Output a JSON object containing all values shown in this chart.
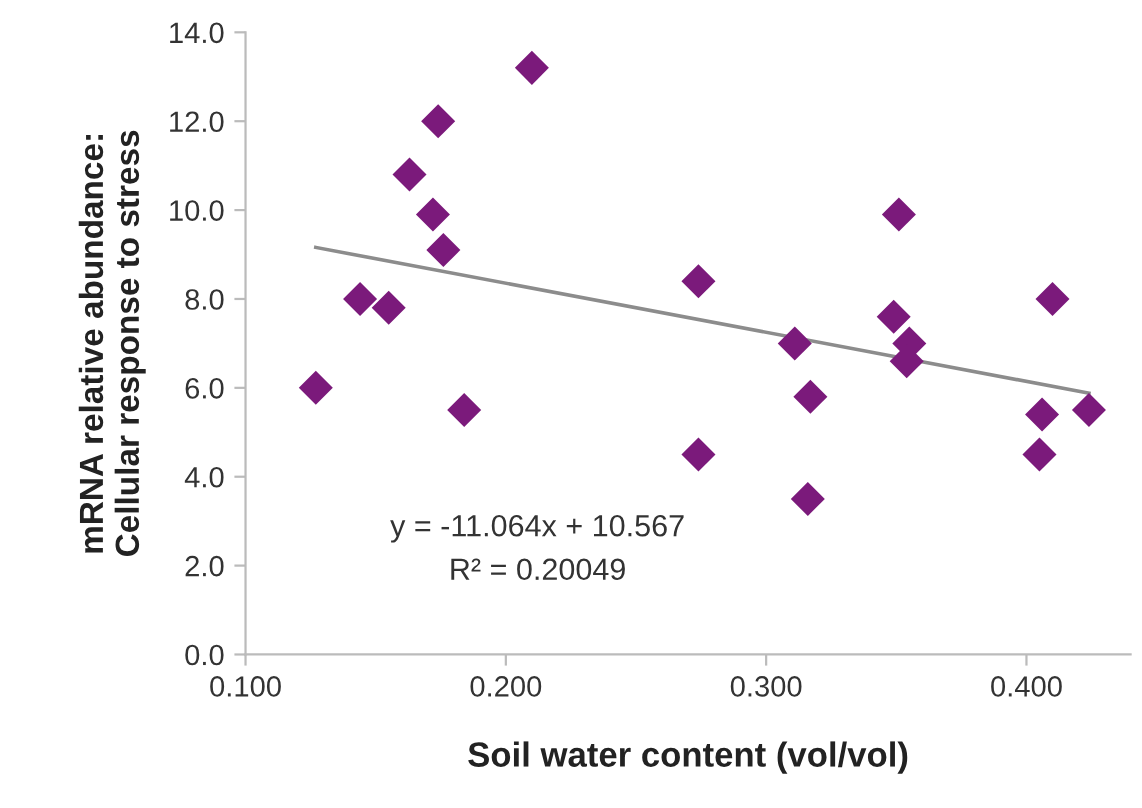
{
  "chart_data": {
    "type": "scatter",
    "xlabel": "Soil water content (vol/vol)",
    "ylabel": "mRNA relative abundance:\nCellular response to stress",
    "annotations": [
      "y = -11.064x + 10.567",
      "R² = 0.20049"
    ],
    "grid": false,
    "legend": false,
    "xlim": [
      0.1,
      0.44
    ],
    "ylim": [
      0,
      14
    ],
    "xticks": [
      {
        "value": 0.1,
        "label": "0.100"
      },
      {
        "value": 0.2,
        "label": "0.200"
      },
      {
        "value": 0.3,
        "label": "0.300"
      },
      {
        "value": 0.4,
        "label": "0.400"
      }
    ],
    "yticks": [
      {
        "value": 0,
        "label": "0.0"
      },
      {
        "value": 2,
        "label": "2.0"
      },
      {
        "value": 4,
        "label": "4.0"
      },
      {
        "value": 6,
        "label": "6.0"
      },
      {
        "value": 8,
        "label": "8.0"
      },
      {
        "value": 10,
        "label": "10.0"
      },
      {
        "value": 12,
        "label": "12.0"
      },
      {
        "value": 14,
        "label": "14.0"
      }
    ],
    "series": [
      {
        "marker": "diamond",
        "color": "#7b1a7b",
        "x": [
          0.127,
          0.144,
          0.155,
          0.163,
          0.174,
          0.172,
          0.176,
          0.184,
          0.21,
          0.351,
          0.274,
          0.41,
          0.349,
          0.311,
          0.355,
          0.354,
          0.317,
          0.406,
          0.424,
          0.274,
          0.405,
          0.316
        ],
        "values": [
          6.0,
          8.0,
          7.8,
          10.8,
          12.0,
          9.9,
          9.1,
          5.5,
          13.2,
          9.9,
          8.4,
          8.0,
          7.6,
          7.0,
          7.0,
          6.6,
          5.8,
          5.4,
          5.5,
          4.5,
          4.5,
          3.5
        ]
      },
      {
        "type": "line",
        "color": "#8c8c8c",
        "x": [
          0.127,
          0.424
        ],
        "values": [
          9.16,
          5.88
        ]
      }
    ]
  }
}
